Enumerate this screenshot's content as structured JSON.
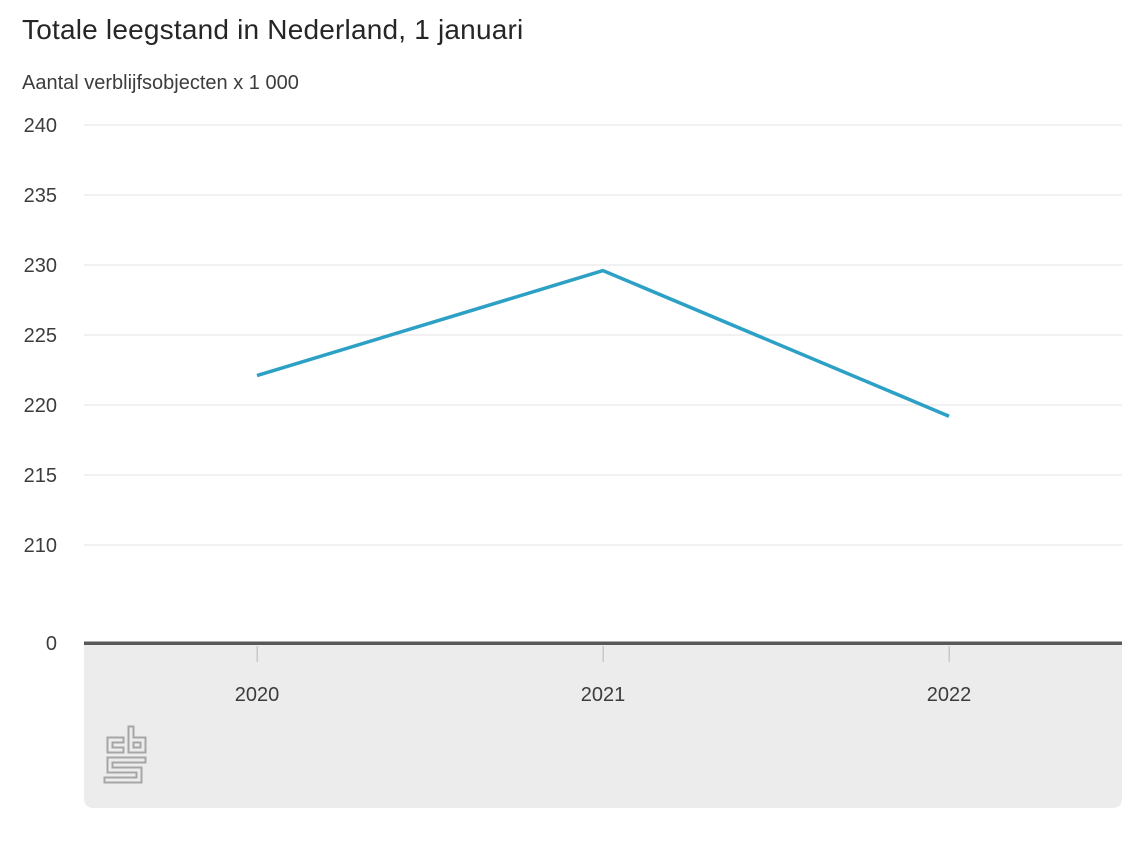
{
  "title": "Totale leegstand in Nederland, 1 januari",
  "subtitle": "Aantal verblijfsobjecten x 1 000",
  "chart_data": {
    "type": "line",
    "title": "Totale leegstand in Nederland, 1 januari",
    "subtitle": "Aantal verblijfsobjecten x 1 000",
    "categories": [
      "2020",
      "2021",
      "2022"
    ],
    "series": [
      {
        "name": "Totale leegstand",
        "values": [
          222.1,
          229.6,
          219.2
        ]
      }
    ],
    "yticks": [
      0,
      210,
      215,
      220,
      225,
      230,
      235,
      240
    ],
    "ylim_visible": [
      210,
      240
    ],
    "axis_break_between_0_and_210": true,
    "xlabel": "",
    "ylabel": "Aantal verblijfsobjecten x 1 000",
    "grid": true,
    "legend_position": "none"
  },
  "colors": {
    "line": "#2da0c5",
    "grid": "#e3e3e3",
    "axis": "#59595b",
    "tick": "#c9c9c9",
    "panel": "#ececec",
    "label_text": "#3c3c3c",
    "title_text": "#262626",
    "logo": "#a6a6a6"
  },
  "branding": {
    "logo_name": "CBS"
  }
}
